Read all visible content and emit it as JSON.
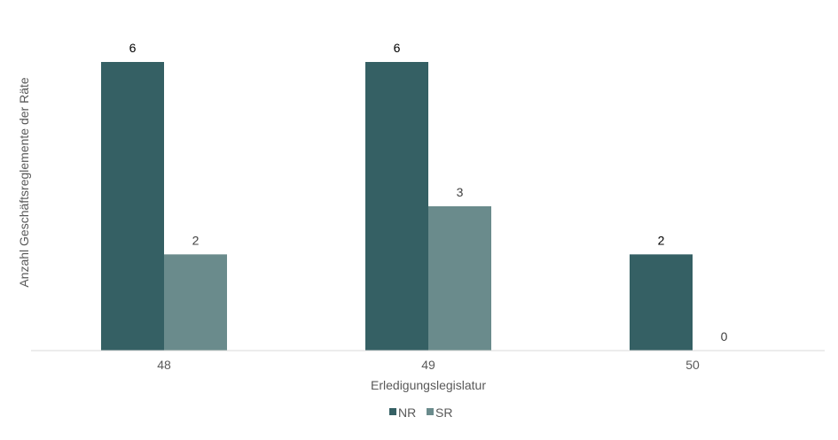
{
  "chart_data": {
    "type": "bar",
    "categories": [
      "48",
      "49",
      "50"
    ],
    "series": [
      {
        "name": "NR",
        "values": [
          6,
          6,
          2
        ],
        "color": "#356064"
      },
      {
        "name": "SR",
        "values": [
          2,
          3,
          0
        ],
        "color": "#6a8b8c"
      }
    ],
    "xlabel": "Erledigungslegislatur",
    "ylabel": "Anzahl Geschäftsreglemente der Räte",
    "ylim": [
      0,
      6
    ],
    "grid": false,
    "legend": "bottom-center",
    "label_colors": {
      "NR": "#000000",
      "SR": "#404040"
    }
  }
}
